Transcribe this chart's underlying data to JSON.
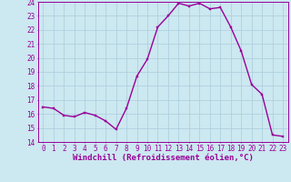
{
  "x": [
    0,
    1,
    2,
    3,
    4,
    5,
    6,
    7,
    8,
    9,
    10,
    11,
    12,
    13,
    14,
    15,
    16,
    17,
    18,
    19,
    20,
    21,
    22,
    23
  ],
  "y": [
    16.5,
    16.4,
    15.9,
    15.8,
    16.1,
    15.9,
    15.5,
    14.9,
    16.4,
    18.7,
    19.9,
    22.2,
    23.0,
    23.9,
    23.7,
    23.9,
    23.5,
    23.6,
    22.2,
    20.5,
    18.1,
    17.4,
    14.5,
    14.4
  ],
  "line_color": "#990099",
  "marker": "s",
  "marker_size": 2,
  "bg_color": "#cce8f0",
  "grid_color": "#b0d8e8",
  "tick_color": "#990099",
  "label_color": "#990099",
  "xlim": [
    -0.5,
    23.5
  ],
  "ylim": [
    14,
    24
  ],
  "yticks": [
    14,
    15,
    16,
    17,
    18,
    19,
    20,
    21,
    22,
    23,
    24
  ],
  "xticks": [
    0,
    1,
    2,
    3,
    4,
    5,
    6,
    7,
    8,
    9,
    10,
    11,
    12,
    13,
    14,
    15,
    16,
    17,
    18,
    19,
    20,
    21,
    22,
    23
  ],
  "xlabel": "Windchill (Refroidissement éolien,°C)",
  "xlabel_fontsize": 6.5,
  "tick_fontsize": 5.5,
  "line_width": 1.0
}
